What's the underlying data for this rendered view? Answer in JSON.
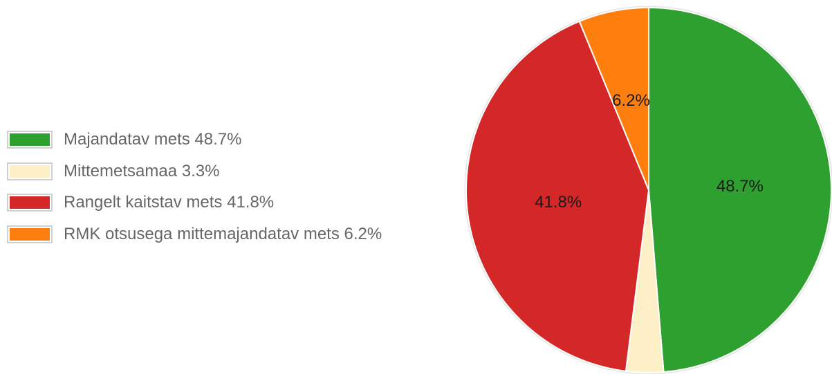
{
  "chart_data": {
    "type": "pie",
    "categories": [
      "Majandatav mets",
      "Mittemetsamaa",
      "Rangelt kaitstav mets",
      "RMK otsusega mittemajandatav mets"
    ],
    "values": [
      48.7,
      3.3,
      41.8,
      6.2
    ],
    "slice_labels": [
      "48.7%",
      "",
      "41.8%",
      "6.2%"
    ],
    "legend_labels": [
      "Majandatav mets 48.7%",
      "Mittemetsamaa 3.3%",
      "Rangelt kaitstav mets 41.8%",
      "RMK otsusega mittemajandatav mets 6.2%"
    ],
    "colors": [
      "#2ea02f",
      "#fdefc6",
      "#d42728",
      "#ff7f0e"
    ],
    "legend_position": "left",
    "start_angle": "12 o'clock",
    "direction": "clockwise"
  }
}
